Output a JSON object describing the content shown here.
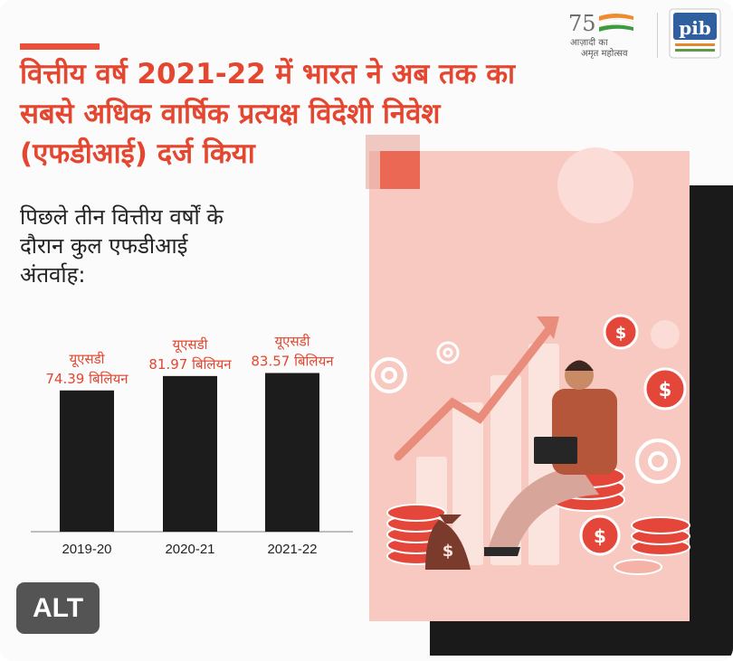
{
  "headline": {
    "lines": [
      "वित्तीय वर्ष 2021-22 में भारत ने अब तक का",
      "सबसे अधिक वार्षिक प्रत्यक्ष विदेशी निवेश",
      "(एफडीआई) दर्ज किया"
    ]
  },
  "subtitle": {
    "lines": [
      "पिछले तीन वित्तीय वर्षों के",
      "दौरान कुल एफडीआई",
      "अंतर्वाह:"
    ]
  },
  "logos": {
    "azadi_number": "75",
    "azadi_line1": "आज़ादी का",
    "azadi_line2": "अमृत महोत्सव",
    "pib": "pib"
  },
  "alt_button": "ALT",
  "colors": {
    "accent": "#e4462f",
    "bar": "#1c1c1c",
    "label": "#e4462f",
    "illustration_bg": "#f7c9c0"
  },
  "chart_data": {
    "type": "bar",
    "categories": [
      "2019-20",
      "2020-21",
      "2021-22"
    ],
    "values": [
      74.39,
      81.97,
      83.57
    ],
    "data_labels": [
      [
        "यूएसडी",
        "74.39 बिलियन"
      ],
      [
        "यूएसडी",
        "81.97 बिलियन"
      ],
      [
        "यूएसडी",
        "83.57 बिलियन"
      ]
    ],
    "title": "पिछले तीन वित्तीय वर्षों के दौरान कुल एफडीआई अंतर्वाह:",
    "xlabel": "",
    "ylabel": "",
    "ylim": [
      0,
      100
    ],
    "grid": false,
    "legend": "none"
  }
}
